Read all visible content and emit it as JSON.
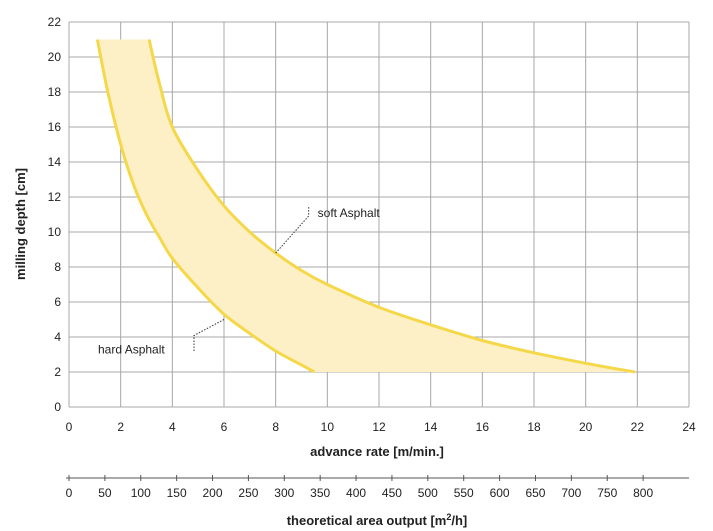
{
  "chart_data": {
    "type": "area",
    "xlabel": "advance rate [m/min.]",
    "ylabel": "milling depth [cm]",
    "xlim": [
      0,
      24
    ],
    "ylim": [
      0,
      22
    ],
    "xticks": [
      0,
      2,
      4,
      6,
      8,
      10,
      12,
      14,
      16,
      18,
      20,
      22,
      24
    ],
    "yticks": [
      0,
      2,
      4,
      6,
      8,
      10,
      12,
      14,
      16,
      18,
      20,
      22
    ],
    "grid": true,
    "series": [
      {
        "name": "soft Asphalt",
        "x": [
          3.1,
          3.5,
          4.0,
          5.0,
          6.0,
          7.0,
          8.0,
          9.0,
          10.0,
          12.0,
          14.0,
          16.0,
          18.0,
          20.0,
          21.9
        ],
        "y": [
          21.0,
          18.5,
          16.0,
          13.5,
          11.5,
          10.0,
          8.8,
          7.8,
          7.0,
          5.7,
          4.7,
          3.8,
          3.1,
          2.5,
          2.0
        ]
      },
      {
        "name": "hard Asphalt",
        "x": [
          1.1,
          1.5,
          2.0,
          2.5,
          3.0,
          3.5,
          4.0,
          5.0,
          6.0,
          7.0,
          8.0,
          9.0,
          9.5
        ],
        "y": [
          21.0,
          18.0,
          15.0,
          12.7,
          11.0,
          9.7,
          8.5,
          6.8,
          5.3,
          4.2,
          3.2,
          2.4,
          2.0
        ]
      }
    ],
    "fill_color": "#fdf0c6",
    "line_color": "#f5d84a",
    "annotations": [
      {
        "text": "soft Asphalt",
        "x": 8.0,
        "y": 8.8
      },
      {
        "text": "hard Asphalt",
        "x": 6.0,
        "y": 5.0
      }
    ],
    "secondary_axis": {
      "label": "theoretical area output [m²/h]",
      "label_main": "theoretical area output [m",
      "label_sup": "2",
      "label_end": "/h]",
      "ticks": [
        0,
        50,
        100,
        150,
        200,
        250,
        300,
        350,
        400,
        450,
        500,
        550,
        600,
        650,
        700,
        750,
        800
      ],
      "advance_rate_per_unit": 0.02778
    }
  }
}
